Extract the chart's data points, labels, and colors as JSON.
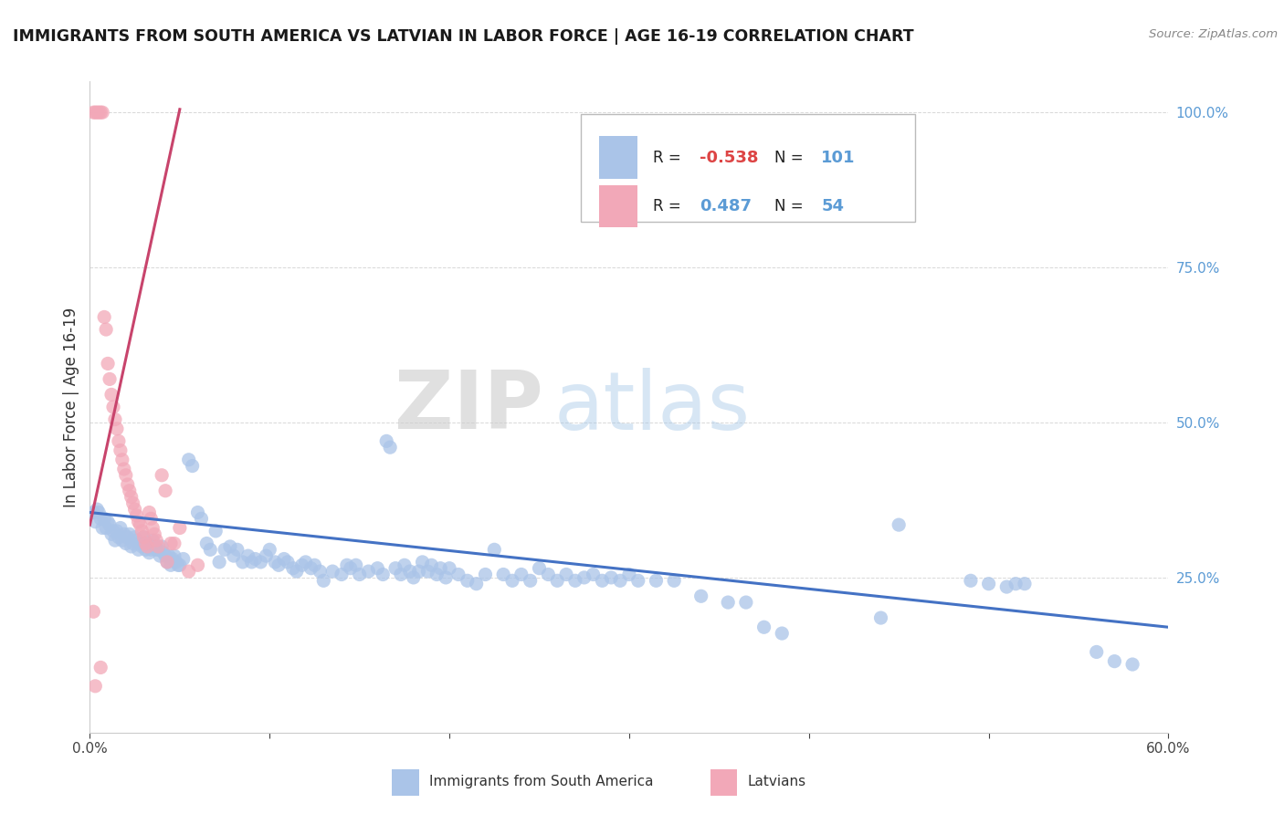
{
  "title": "IMMIGRANTS FROM SOUTH AMERICA VS LATVIAN IN LABOR FORCE | AGE 16-19 CORRELATION CHART",
  "source": "Source: ZipAtlas.com",
  "ylabel": "In Labor Force | Age 16-19",
  "right_yticks": [
    "100.0%",
    "75.0%",
    "50.0%",
    "25.0%"
  ],
  "right_ytick_vals": [
    1.0,
    0.75,
    0.5,
    0.25
  ],
  "watermark_zip": "ZIP",
  "watermark_atlas": "atlas",
  "legend_blue_r": "-0.538",
  "legend_blue_n": "101",
  "legend_pink_r": "0.487",
  "legend_pink_n": "54",
  "blue_color": "#aac4e8",
  "pink_color": "#f2a8b8",
  "blue_line_color": "#4472c4",
  "pink_line_color": "#c8446c",
  "blue_scatter": [
    [
      0.002,
      0.355
    ],
    [
      0.003,
      0.34
    ],
    [
      0.004,
      0.36
    ],
    [
      0.005,
      0.355
    ],
    [
      0.006,
      0.345
    ],
    [
      0.007,
      0.33
    ],
    [
      0.008,
      0.345
    ],
    [
      0.009,
      0.33
    ],
    [
      0.01,
      0.34
    ],
    [
      0.011,
      0.335
    ],
    [
      0.012,
      0.32
    ],
    [
      0.013,
      0.325
    ],
    [
      0.014,
      0.31
    ],
    [
      0.015,
      0.325
    ],
    [
      0.016,
      0.315
    ],
    [
      0.017,
      0.33
    ],
    [
      0.018,
      0.31
    ],
    [
      0.019,
      0.32
    ],
    [
      0.02,
      0.305
    ],
    [
      0.021,
      0.315
    ],
    [
      0.022,
      0.32
    ],
    [
      0.023,
      0.3
    ],
    [
      0.024,
      0.305
    ],
    [
      0.025,
      0.315
    ],
    [
      0.026,
      0.31
    ],
    [
      0.027,
      0.295
    ],
    [
      0.028,
      0.305
    ],
    [
      0.029,
      0.3
    ],
    [
      0.03,
      0.315
    ],
    [
      0.031,
      0.295
    ],
    [
      0.032,
      0.305
    ],
    [
      0.033,
      0.29
    ],
    [
      0.034,
      0.295
    ],
    [
      0.035,
      0.31
    ],
    [
      0.036,
      0.3
    ],
    [
      0.037,
      0.295
    ],
    [
      0.038,
      0.295
    ],
    [
      0.039,
      0.285
    ],
    [
      0.04,
      0.3
    ],
    [
      0.041,
      0.29
    ],
    [
      0.042,
      0.285
    ],
    [
      0.043,
      0.275
    ],
    [
      0.044,
      0.285
    ],
    [
      0.045,
      0.27
    ],
    [
      0.046,
      0.28
    ],
    [
      0.047,
      0.285
    ],
    [
      0.048,
      0.275
    ],
    [
      0.049,
      0.27
    ],
    [
      0.05,
      0.27
    ],
    [
      0.052,
      0.28
    ],
    [
      0.055,
      0.44
    ],
    [
      0.057,
      0.43
    ],
    [
      0.06,
      0.355
    ],
    [
      0.062,
      0.345
    ],
    [
      0.065,
      0.305
    ],
    [
      0.067,
      0.295
    ],
    [
      0.07,
      0.325
    ],
    [
      0.072,
      0.275
    ],
    [
      0.075,
      0.295
    ],
    [
      0.078,
      0.3
    ],
    [
      0.08,
      0.285
    ],
    [
      0.082,
      0.295
    ],
    [
      0.085,
      0.275
    ],
    [
      0.088,
      0.285
    ],
    [
      0.09,
      0.275
    ],
    [
      0.092,
      0.28
    ],
    [
      0.095,
      0.275
    ],
    [
      0.098,
      0.285
    ],
    [
      0.1,
      0.295
    ],
    [
      0.103,
      0.275
    ],
    [
      0.105,
      0.27
    ],
    [
      0.108,
      0.28
    ],
    [
      0.11,
      0.275
    ],
    [
      0.113,
      0.265
    ],
    [
      0.115,
      0.26
    ],
    [
      0.118,
      0.27
    ],
    [
      0.12,
      0.275
    ],
    [
      0.123,
      0.265
    ],
    [
      0.125,
      0.27
    ],
    [
      0.128,
      0.26
    ],
    [
      0.13,
      0.245
    ],
    [
      0.135,
      0.26
    ],
    [
      0.14,
      0.255
    ],
    [
      0.143,
      0.27
    ],
    [
      0.145,
      0.265
    ],
    [
      0.148,
      0.27
    ],
    [
      0.15,
      0.255
    ],
    [
      0.155,
      0.26
    ],
    [
      0.16,
      0.265
    ],
    [
      0.163,
      0.255
    ],
    [
      0.165,
      0.47
    ],
    [
      0.167,
      0.46
    ],
    [
      0.17,
      0.265
    ],
    [
      0.173,
      0.255
    ],
    [
      0.175,
      0.27
    ],
    [
      0.178,
      0.26
    ],
    [
      0.18,
      0.25
    ],
    [
      0.183,
      0.26
    ],
    [
      0.185,
      0.275
    ],
    [
      0.188,
      0.26
    ],
    [
      0.19,
      0.27
    ],
    [
      0.193,
      0.255
    ],
    [
      0.195,
      0.265
    ],
    [
      0.198,
      0.25
    ],
    [
      0.2,
      0.265
    ],
    [
      0.205,
      0.255
    ],
    [
      0.21,
      0.245
    ],
    [
      0.215,
      0.24
    ],
    [
      0.22,
      0.255
    ],
    [
      0.225,
      0.295
    ],
    [
      0.23,
      0.255
    ],
    [
      0.235,
      0.245
    ],
    [
      0.24,
      0.255
    ],
    [
      0.245,
      0.245
    ],
    [
      0.25,
      0.265
    ],
    [
      0.255,
      0.255
    ],
    [
      0.26,
      0.245
    ],
    [
      0.265,
      0.255
    ],
    [
      0.27,
      0.245
    ],
    [
      0.275,
      0.25
    ],
    [
      0.28,
      0.255
    ],
    [
      0.285,
      0.245
    ],
    [
      0.29,
      0.25
    ],
    [
      0.295,
      0.245
    ],
    [
      0.3,
      0.255
    ],
    [
      0.305,
      0.245
    ],
    [
      0.315,
      0.245
    ],
    [
      0.325,
      0.245
    ],
    [
      0.34,
      0.22
    ],
    [
      0.355,
      0.21
    ],
    [
      0.365,
      0.21
    ],
    [
      0.375,
      0.17
    ],
    [
      0.385,
      0.16
    ],
    [
      0.44,
      0.185
    ],
    [
      0.49,
      0.245
    ],
    [
      0.5,
      0.24
    ],
    [
      0.51,
      0.235
    ],
    [
      0.515,
      0.24
    ],
    [
      0.52,
      0.24
    ],
    [
      0.56,
      0.13
    ],
    [
      0.57,
      0.115
    ],
    [
      0.58,
      0.11
    ],
    [
      0.45,
      0.335
    ]
  ],
  "pink_scatter": [
    [
      0.002,
      1.0
    ],
    [
      0.003,
      1.0
    ],
    [
      0.004,
      1.0
    ],
    [
      0.005,
      1.0
    ],
    [
      0.006,
      1.0
    ],
    [
      0.007,
      1.0
    ],
    [
      0.008,
      0.67
    ],
    [
      0.009,
      0.65
    ],
    [
      0.01,
      0.595
    ],
    [
      0.011,
      0.57
    ],
    [
      0.012,
      0.545
    ],
    [
      0.013,
      0.525
    ],
    [
      0.014,
      0.505
    ],
    [
      0.015,
      0.49
    ],
    [
      0.016,
      0.47
    ],
    [
      0.017,
      0.455
    ],
    [
      0.018,
      0.44
    ],
    [
      0.019,
      0.425
    ],
    [
      0.02,
      0.415
    ],
    [
      0.021,
      0.4
    ],
    [
      0.022,
      0.39
    ],
    [
      0.023,
      0.38
    ],
    [
      0.024,
      0.37
    ],
    [
      0.025,
      0.36
    ],
    [
      0.026,
      0.35
    ],
    [
      0.027,
      0.34
    ],
    [
      0.028,
      0.335
    ],
    [
      0.029,
      0.325
    ],
    [
      0.03,
      0.315
    ],
    [
      0.031,
      0.305
    ],
    [
      0.032,
      0.3
    ],
    [
      0.033,
      0.355
    ],
    [
      0.034,
      0.345
    ],
    [
      0.035,
      0.33
    ],
    [
      0.036,
      0.32
    ],
    [
      0.037,
      0.31
    ],
    [
      0.038,
      0.3
    ],
    [
      0.04,
      0.415
    ],
    [
      0.042,
      0.39
    ],
    [
      0.043,
      0.275
    ],
    [
      0.045,
      0.305
    ],
    [
      0.047,
      0.305
    ],
    [
      0.05,
      0.33
    ],
    [
      0.055,
      0.26
    ],
    [
      0.06,
      0.27
    ],
    [
      0.002,
      0.195
    ],
    [
      0.003,
      0.075
    ],
    [
      0.006,
      0.105
    ]
  ],
  "blue_trend_x": [
    0.0,
    0.6
  ],
  "blue_trend_y": [
    0.355,
    0.17
  ],
  "pink_trend_x": [
    0.0,
    0.05
  ],
  "pink_trend_y": [
    0.335,
    1.005
  ],
  "xmin": 0.0,
  "xmax": 0.6,
  "ymin": 0.0,
  "ymax": 1.05,
  "grid_color": "#d8d8d8",
  "grid_linestyle": "--",
  "grid_linewidth": 0.7
}
